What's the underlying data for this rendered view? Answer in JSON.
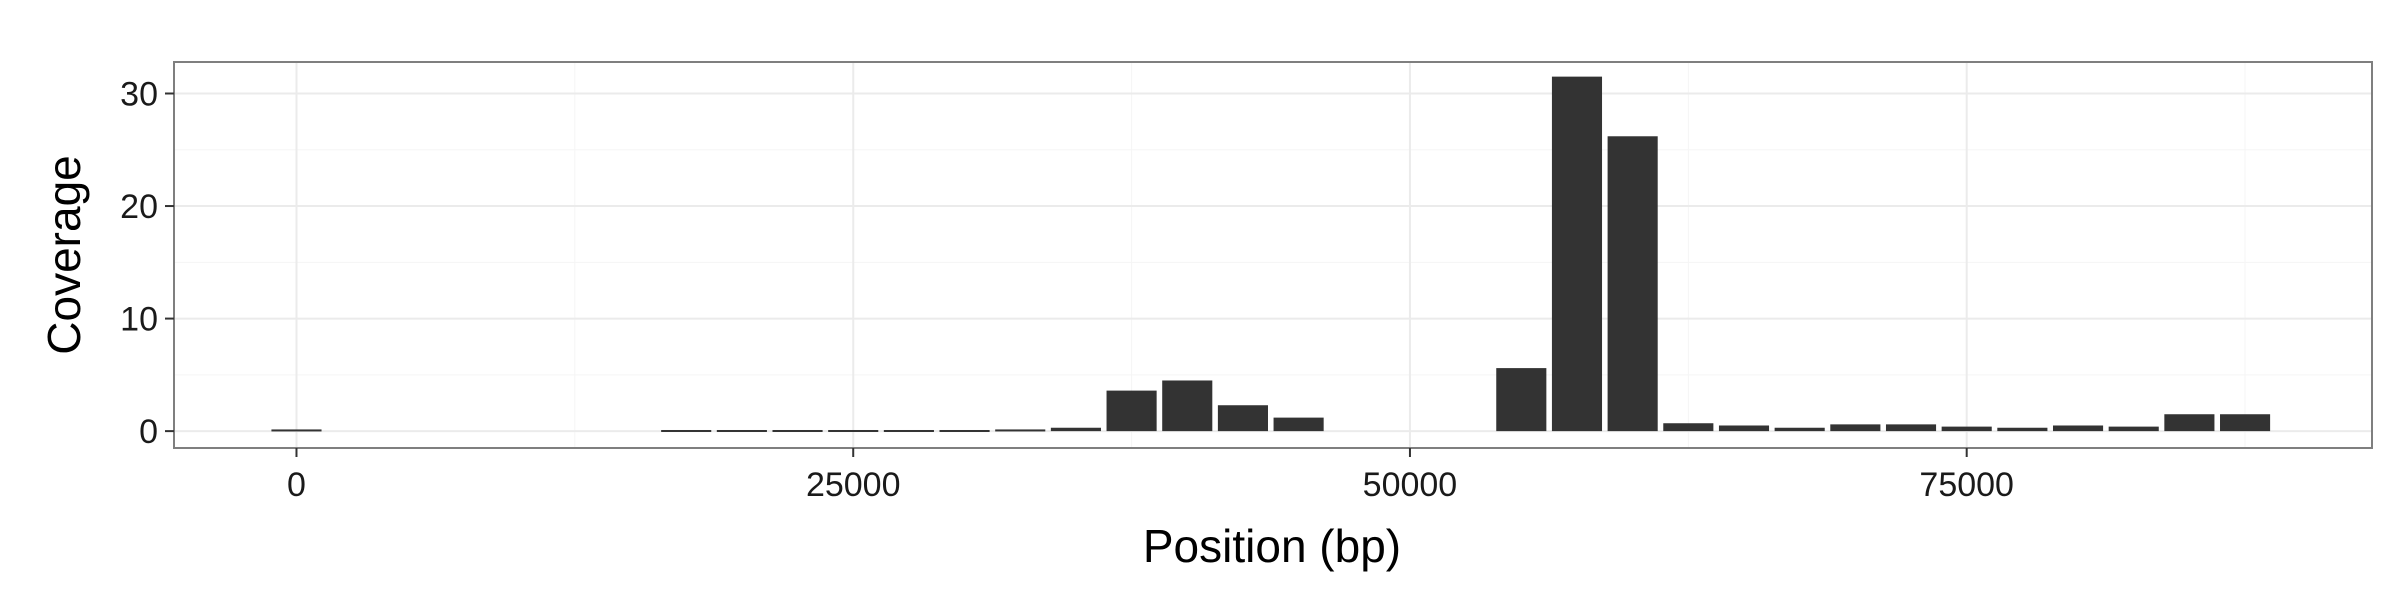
{
  "chart_data": {
    "type": "bar",
    "title": "",
    "xlabel": "Position (bp)",
    "ylabel": "Coverage",
    "xlim": [
      -5500,
      93200
    ],
    "ylim": [
      -1.5,
      32.8
    ],
    "xticks": [
      0,
      25000,
      50000,
      75000
    ],
    "yticks": [
      0,
      10,
      20,
      30
    ],
    "bar_width_bp": 2250,
    "grid": true,
    "panel_border_color": "#7f7f7f",
    "grid_major_color": "#ebebeb",
    "grid_minor_color": "#f5f5f5",
    "bar_color": "#333333",
    "x": [
      0,
      17500,
      20000,
      22500,
      25000,
      27500,
      30000,
      32500,
      35000,
      37500,
      40000,
      42500,
      45000,
      55000,
      57500,
      60000,
      62500,
      65000,
      67500,
      70000,
      72500,
      75000,
      77500,
      80000,
      82500,
      85000,
      87500
    ],
    "values": [
      0.15,
      0.1,
      0.1,
      0.1,
      0.1,
      0.1,
      0.1,
      0.15,
      0.3,
      3.6,
      4.5,
      2.3,
      1.2,
      5.6,
      31.5,
      26.2,
      0.7,
      0.5,
      0.3,
      0.6,
      0.6,
      0.4,
      0.3,
      0.5,
      0.4,
      1.5,
      1.5
    ]
  }
}
